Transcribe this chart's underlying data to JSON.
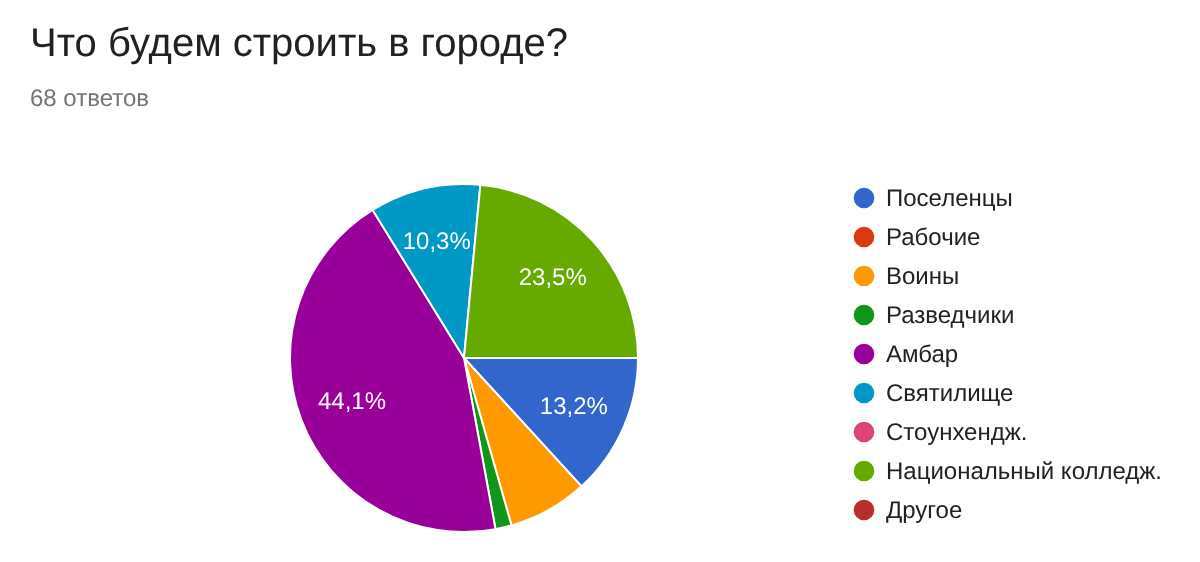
{
  "chart_data": {
    "type": "pie",
    "title": "Что будем строить в городе?",
    "subtitle": "68 ответов",
    "categories": [
      "Поселенцы",
      "Рабочие",
      "Воины",
      "Разведчики",
      "Амбар",
      "Святилище",
      "Стоунхендж.",
      "Национальный колледж.",
      "Другое"
    ],
    "values": [
      13.2,
      0,
      7.4,
      1.5,
      44.1,
      10.3,
      0,
      23.5,
      0
    ],
    "value_labels": [
      "13,2%",
      null,
      null,
      null,
      "44,1%",
      "10,3%",
      null,
      "23,5%",
      null
    ],
    "colors": [
      "#3366cc",
      "#dc3912",
      "#ff9900",
      "#109618",
      "#990099",
      "#0099c6",
      "#dd4477",
      "#66aa00",
      "#b82e2e"
    ],
    "legend": "right"
  }
}
